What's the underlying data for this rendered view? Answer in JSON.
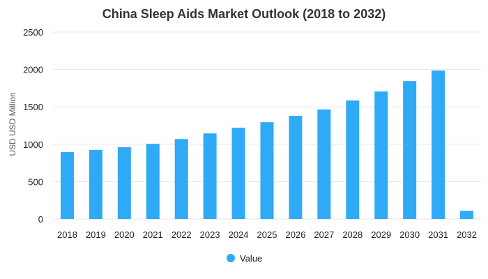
{
  "chart_data": {
    "type": "bar",
    "title": "China Sleep Aids Market Outlook (2018 to 2032)",
    "xlabel": "",
    "ylabel": "USD USD Million",
    "ylim": [
      0,
      2500
    ],
    "yticks": [
      0,
      500,
      1000,
      1500,
      2000,
      2500
    ],
    "grid": true,
    "legend_position": "bottom",
    "categories": [
      "2018",
      "2019",
      "2020",
      "2021",
      "2022",
      "2023",
      "2024",
      "2025",
      "2026",
      "2027",
      "2028",
      "2029",
      "2030",
      "2031",
      "2032"
    ],
    "series": [
      {
        "name": "Value",
        "color": "#2eaaf7",
        "values": [
          895,
          925,
          960,
          1005,
          1070,
          1145,
          1220,
          1295,
          1380,
          1465,
          1585,
          1705,
          1845,
          1985,
          110
        ]
      }
    ]
  }
}
